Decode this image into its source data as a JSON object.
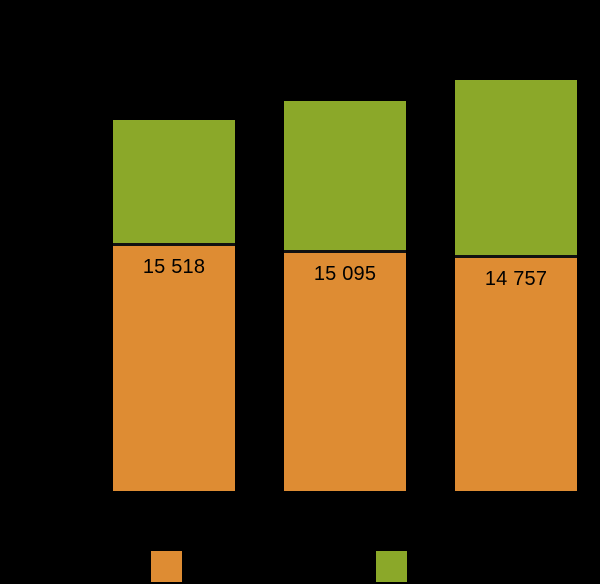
{
  "background_color": "#000000",
  "chart_data": {
    "type": "bar",
    "stacked": true,
    "title": "",
    "xlabel": "",
    "ylabel": "",
    "categories": [
      "",
      "",
      ""
    ],
    "series": [
      {
        "name": "lower-segment-orange",
        "color": "#DE8C33",
        "values": [
          15518,
          15095,
          14757
        ],
        "value_labels": [
          "15 518",
          "15 095",
          "14 757"
        ],
        "labels_visible": true
      },
      {
        "name": "upper-segment-green",
        "color": "#8BA829",
        "values": [
          7800,
          9450,
          11100
        ],
        "values_estimated_from_pixels": true,
        "labels_visible": false
      }
    ],
    "separator_line_color": "#111111",
    "value_label_color": "#000000",
    "axis_visible": false,
    "grid": false,
    "legend_position": "bottom"
  },
  "legend": {
    "items": [
      {
        "name": "legend-item-orange",
        "swatch_color": "#DE8C33"
      },
      {
        "name": "legend-item-green",
        "swatch_color": "#8BA829"
      }
    ]
  }
}
